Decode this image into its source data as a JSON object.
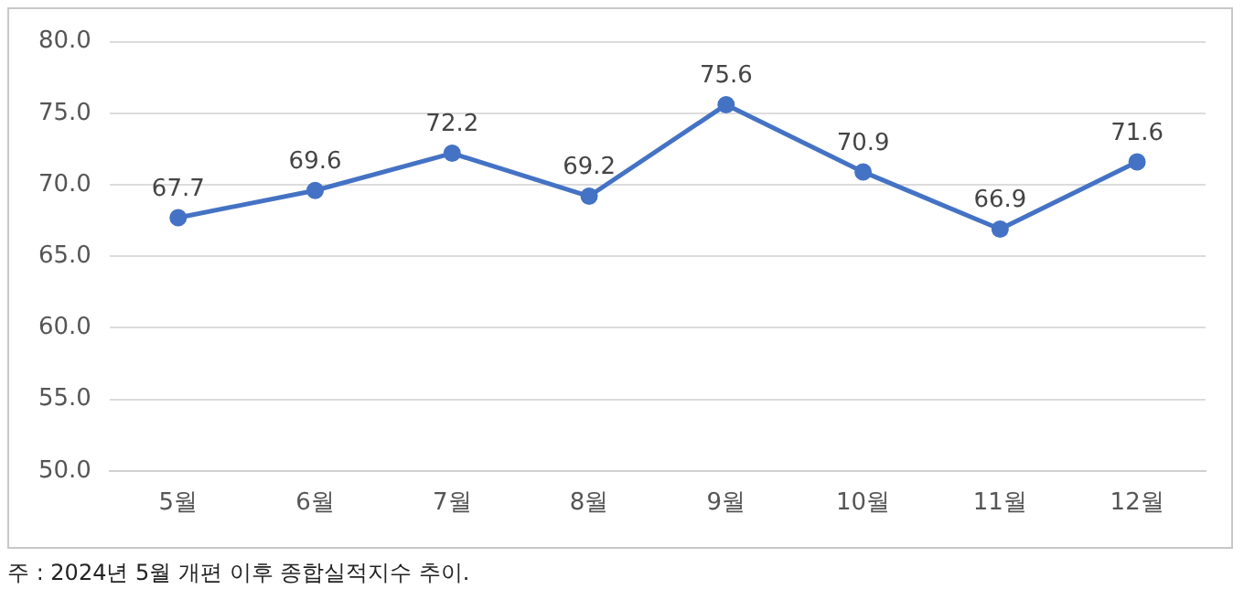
{
  "chart_data": {
    "type": "line",
    "categories": [
      "5월",
      "6월",
      "7월",
      "8월",
      "9월",
      "10월",
      "11월",
      "12월"
    ],
    "series": [
      {
        "color": "#4472c4",
        "values": [
          67.7,
          69.6,
          72.2,
          69.2,
          75.6,
          70.9,
          66.9,
          71.6
        ]
      }
    ],
    "ylim": [
      50,
      80
    ],
    "yticks": [
      {
        "value": 50,
        "label": "50.0"
      },
      {
        "value": 55,
        "label": "55.0"
      },
      {
        "value": 60,
        "label": "60.0"
      },
      {
        "value": 65,
        "label": "65.0"
      },
      {
        "value": 70,
        "label": "70.0"
      },
      {
        "value": 75,
        "label": "75.0"
      },
      {
        "value": 80,
        "label": "80.0"
      }
    ],
    "grid": "y",
    "legend": false,
    "marker": "circle",
    "line_style": "solid",
    "data_labels": true,
    "annotations": [
      "주 : 2024년 5월 개편 이후 종합실적지수 추이."
    ]
  }
}
